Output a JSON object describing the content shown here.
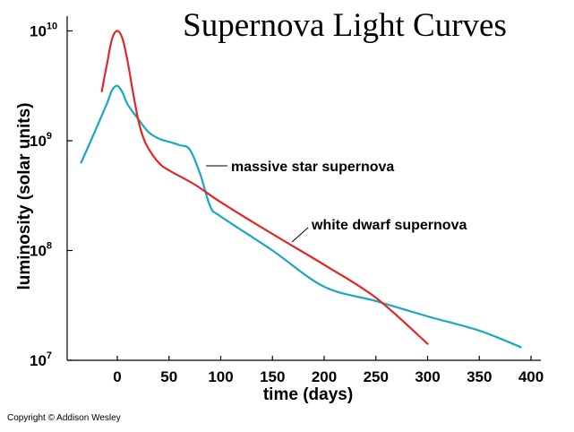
{
  "chart_data": {
    "type": "line",
    "title": "Supernova Light Curves",
    "xlabel": "time (days)",
    "ylabel": "luminosity (solar units)",
    "xlim": [
      -40,
      400
    ],
    "ylim_log10": [
      7,
      10
    ],
    "y_scale": "log",
    "x_ticks": [
      "0",
      "50",
      "100",
      "150",
      "200",
      "250",
      "300",
      "350",
      "400"
    ],
    "x_tick_values": [
      0,
      50,
      100,
      150,
      200,
      250,
      300,
      350,
      400
    ],
    "y_ticks": [
      {
        "base": "10",
        "exp": "10",
        "log10": 10
      },
      {
        "base": "10",
        "exp": "9",
        "log10": 9
      },
      {
        "base": "10",
        "exp": "8",
        "log10": 8
      },
      {
        "base": "10",
        "exp": "7",
        "log10": 7
      }
    ],
    "series": [
      {
        "name": "white dwarf supernova",
        "color": "#e32626",
        "points": [
          [
            -15,
            9.45
          ],
          [
            -10,
            9.7
          ],
          [
            -5,
            9.93
          ],
          [
            0,
            10.0
          ],
          [
            5,
            9.93
          ],
          [
            10,
            9.72
          ],
          [
            15,
            9.45
          ],
          [
            20,
            9.2
          ],
          [
            25,
            9.03
          ],
          [
            30,
            8.93
          ],
          [
            40,
            8.8
          ],
          [
            50,
            8.73
          ],
          [
            75,
            8.6
          ],
          [
            100,
            8.44
          ],
          [
            150,
            8.15
          ],
          [
            200,
            7.87
          ],
          [
            250,
            7.57
          ],
          [
            300,
            7.15
          ]
        ]
      },
      {
        "name": "massive star supernova",
        "color": "#1aa8bf",
        "points": [
          [
            -35,
            8.8
          ],
          [
            -20,
            9.12
          ],
          [
            -10,
            9.34
          ],
          [
            -5,
            9.46
          ],
          [
            0,
            9.5
          ],
          [
            5,
            9.44
          ],
          [
            10,
            9.33
          ],
          [
            20,
            9.2
          ],
          [
            30,
            9.08
          ],
          [
            40,
            9.02
          ],
          [
            50,
            8.99
          ],
          [
            60,
            8.96
          ],
          [
            70,
            8.92
          ],
          [
            80,
            8.7
          ],
          [
            90,
            8.4
          ],
          [
            100,
            8.31
          ],
          [
            150,
            8.0
          ],
          [
            200,
            7.67
          ],
          [
            250,
            7.54
          ],
          [
            300,
            7.4
          ],
          [
            350,
            7.27
          ],
          [
            390,
            7.12
          ]
        ]
      }
    ],
    "annotations": [
      {
        "text": "massive star supernova",
        "series": "massive star supernova"
      },
      {
        "text": "white dwarf supernova",
        "series": "white dwarf supernova"
      }
    ]
  },
  "copyright": "Copyright © Addison Wesley"
}
